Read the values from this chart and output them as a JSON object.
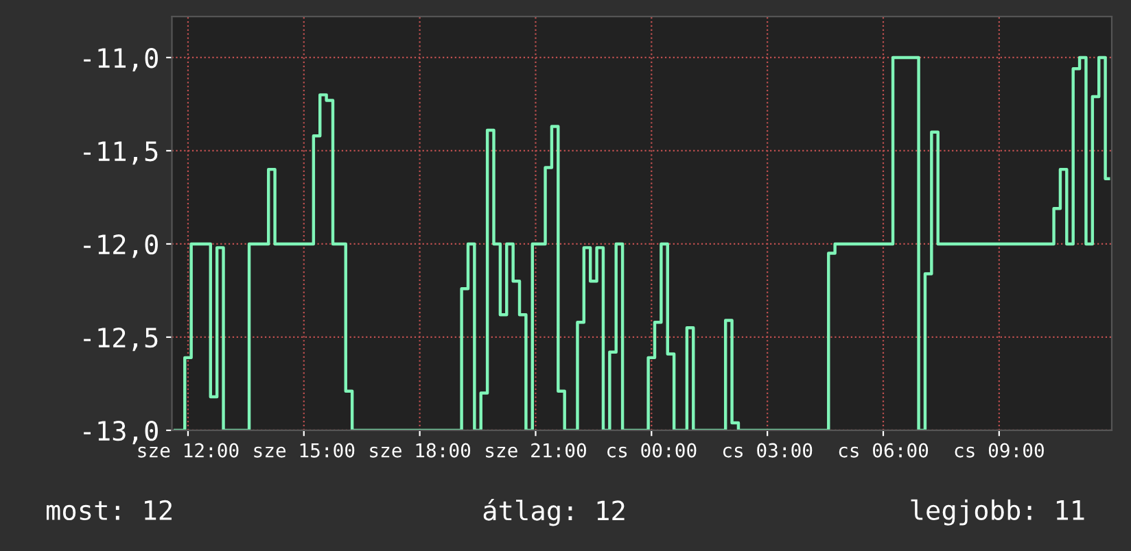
{
  "chart_data": {
    "type": "step",
    "grid": true,
    "color": "#80f5b8",
    "categories": [
      null,
      null,
      "sze 12:00",
      null,
      null,
      null,
      null,
      null,
      null,
      null,
      null,
      null,
      null,
      null,
      null,
      null,
      null,
      null,
      null,
      null,
      "sze 15:00",
      null,
      null,
      null,
      null,
      null,
      null,
      null,
      null,
      null,
      null,
      null,
      null,
      null,
      null,
      null,
      null,
      null,
      "sze 18:00",
      null,
      null,
      null,
      null,
      null,
      null,
      null,
      null,
      null,
      null,
      null,
      null,
      null,
      null,
      null,
      null,
      null,
      "sze 21:00",
      null,
      null,
      null,
      null,
      null,
      null,
      null,
      null,
      null,
      null,
      null,
      null,
      null,
      null,
      null,
      null,
      null,
      "cs 00:00",
      null,
      null,
      null,
      null,
      null,
      null,
      null,
      null,
      null,
      null,
      null,
      null,
      null,
      null,
      null,
      null,
      null,
      "cs 03:00",
      null,
      null,
      null,
      null,
      null,
      null,
      null,
      null,
      null,
      null,
      null,
      null,
      null,
      null,
      null,
      null,
      null,
      "cs 06:00",
      null,
      null,
      null,
      null,
      null,
      null,
      null,
      null,
      null,
      null,
      null,
      null,
      null,
      null,
      null,
      null,
      null,
      "cs 09:00",
      null,
      null,
      null,
      null,
      null,
      null,
      null,
      null,
      null,
      null,
      null,
      null,
      null,
      null,
      null,
      null,
      null
    ],
    "values": [
      -13,
      -13,
      -12.61,
      -12,
      -12,
      -12,
      -12.82,
      -12.02,
      -13,
      -13,
      -13,
      -13,
      -12,
      -12,
      -12,
      -11.6,
      -12,
      -12,
      -12,
      -12,
      -12,
      -12,
      -11.42,
      -11.2,
      -11.23,
      -12,
      -12,
      -12.79,
      -13,
      -13,
      -13,
      -13,
      -13,
      -13,
      -13,
      -13,
      -13,
      -13,
      -13,
      -13,
      -13,
      -13,
      -13,
      -13,
      -13,
      -12.24,
      -12,
      -13,
      -12.8,
      -11.39,
      -12,
      -12.38,
      -12,
      -12.2,
      -12.38,
      -13,
      -12,
      -12,
      -11.59,
      -11.37,
      -12.79,
      -13,
      -13,
      -12.42,
      -12.02,
      -12.2,
      -12.02,
      -13,
      -12.58,
      -12,
      -13,
      -13,
      -13,
      -13,
      -12.61,
      -12.42,
      -12,
      -12.59,
      -13,
      -13,
      -12.45,
      -13,
      -13,
      -13,
      -13,
      -13,
      -12.41,
      -12.96,
      -13,
      -13,
      -13,
      -13,
      -13,
      -13,
      -13,
      -13,
      -13,
      -13,
      -13,
      -13,
      -13,
      -13,
      -12.05,
      -12,
      -12,
      -12,
      -12,
      -12,
      -12,
      -12,
      -12,
      -12,
      -11,
      -11,
      -11,
      -11,
      -13,
      -12.16,
      -11.4,
      -12,
      -12,
      -12,
      -12,
      -12,
      -12,
      -12,
      -12,
      -12,
      -12,
      -12,
      -12,
      -12,
      -12,
      -12,
      -12,
      -12,
      -12,
      -11.81,
      -11.6,
      -12,
      -11.06,
      -11,
      -12,
      -11.21,
      -11,
      -11.65
    ],
    "ylim": [
      -13,
      -10.78
    ],
    "yticks": [
      {
        "value": -13,
        "label": "-13,0"
      },
      {
        "value": -12.5,
        "label": "-12,5"
      },
      {
        "value": -12,
        "label": "-12,0"
      },
      {
        "value": -11.5,
        "label": "-11,5"
      },
      {
        "value": -11,
        "label": "-11,0"
      }
    ],
    "annotations": [
      "most: 12",
      "átlag: 12",
      "legjobb: 11"
    ]
  }
}
